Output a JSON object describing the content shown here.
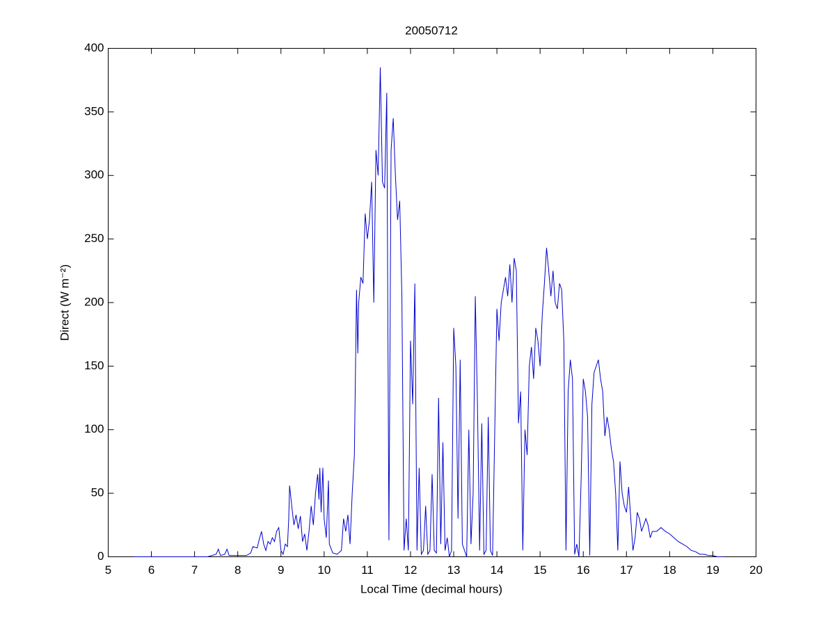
{
  "chart_data": {
    "type": "line",
    "title": "20050712",
    "xlabel": "Local Time (decimal hours)",
    "ylabel": "Direct (W m⁻²)",
    "xlim": [
      5,
      20
    ],
    "ylim": [
      0,
      400
    ],
    "xticks": [
      5,
      6,
      7,
      8,
      9,
      10,
      11,
      12,
      13,
      14,
      15,
      16,
      17,
      18,
      19,
      20
    ],
    "yticks": [
      0,
      50,
      100,
      150,
      200,
      250,
      300,
      350,
      400
    ],
    "series": [
      {
        "color": "#0000cc",
        "x": [
          5.6,
          7.0,
          7.3,
          7.5,
          7.55,
          7.6,
          7.7,
          7.75,
          7.8,
          8.0,
          8.2,
          8.3,
          8.35,
          8.45,
          8.5,
          8.55,
          8.6,
          8.65,
          8.7,
          8.75,
          8.8,
          8.85,
          8.9,
          8.95,
          9.0,
          9.05,
          9.1,
          9.15,
          9.18,
          9.2,
          9.25,
          9.3,
          9.35,
          9.4,
          9.45,
          9.5,
          9.55,
          9.6,
          9.65,
          9.7,
          9.75,
          9.8,
          9.85,
          9.88,
          9.9,
          9.93,
          9.97,
          10.0,
          10.05,
          10.1,
          10.12,
          10.2,
          10.3,
          10.4,
          10.45,
          10.5,
          10.55,
          10.6,
          10.65,
          10.7,
          10.75,
          10.78,
          10.8,
          10.85,
          10.9,
          10.95,
          11.0,
          11.05,
          11.1,
          11.15,
          11.2,
          11.25,
          11.3,
          11.35,
          11.4,
          11.45,
          11.5,
          11.55,
          11.6,
          11.65,
          11.7,
          11.75,
          11.8,
          11.85,
          11.9,
          11.95,
          12.0,
          12.05,
          12.1,
          12.15,
          12.2,
          12.25,
          12.3,
          12.35,
          12.4,
          12.45,
          12.5,
          12.55,
          12.6,
          12.65,
          12.7,
          12.75,
          12.8,
          12.85,
          12.9,
          12.95,
          13.0,
          13.05,
          13.1,
          13.15,
          13.2,
          13.25,
          13.3,
          13.35,
          13.4,
          13.45,
          13.5,
          13.55,
          13.6,
          13.65,
          13.7,
          13.75,
          13.8,
          13.85,
          13.9,
          14.0,
          14.05,
          14.1,
          14.15,
          14.2,
          14.25,
          14.3,
          14.35,
          14.4,
          14.45,
          14.5,
          14.55,
          14.6,
          14.65,
          14.7,
          14.75,
          14.8,
          14.85,
          14.9,
          14.95,
          15.0,
          15.05,
          15.1,
          15.15,
          15.2,
          15.25,
          15.3,
          15.35,
          15.4,
          15.45,
          15.5,
          15.55,
          15.6,
          15.65,
          15.7,
          15.75,
          15.8,
          15.85,
          15.9,
          15.95,
          16.0,
          16.05,
          16.1,
          16.15,
          16.2,
          16.25,
          16.3,
          16.35,
          16.4,
          16.45,
          16.5,
          16.55,
          16.6,
          16.65,
          16.7,
          16.75,
          16.8,
          16.85,
          16.9,
          16.95,
          17.0,
          17.05,
          17.1,
          17.15,
          17.2,
          17.25,
          17.3,
          17.35,
          17.4,
          17.45,
          17.5,
          17.55,
          17.6,
          17.7,
          17.8,
          17.9,
          18.0,
          18.1,
          18.2,
          18.3,
          18.4,
          18.5,
          18.6,
          18.7,
          18.8,
          18.9,
          19.0,
          19.1,
          19.25
        ],
        "values": [
          0,
          0,
          0,
          2,
          6,
          1,
          2,
          6,
          1,
          1,
          1,
          3,
          8,
          7,
          14,
          20,
          10,
          5,
          12,
          10,
          15,
          12,
          20,
          23,
          5,
          2,
          10,
          8,
          30,
          56,
          40,
          25,
          33,
          22,
          32,
          12,
          18,
          5,
          20,
          40,
          25,
          50,
          65,
          45,
          70,
          35,
          70,
          30,
          15,
          60,
          10,
          3,
          2,
          5,
          30,
          20,
          33,
          10,
          50,
          80,
          210,
          160,
          200,
          220,
          215,
          270,
          250,
          265,
          295,
          200,
          320,
          300,
          385,
          295,
          290,
          365,
          13,
          320,
          345,
          300,
          265,
          280,
          205,
          5,
          30,
          5,
          170,
          120,
          215,
          5,
          70,
          2,
          5,
          40,
          2,
          5,
          65,
          5,
          3,
          125,
          10,
          90,
          5,
          15,
          0,
          5,
          180,
          150,
          30,
          155,
          10,
          5,
          0,
          100,
          10,
          50,
          205,
          120,
          5,
          105,
          2,
          5,
          110,
          5,
          1,
          195,
          170,
          200,
          210,
          220,
          205,
          230,
          200,
          235,
          225,
          105,
          130,
          5,
          100,
          80,
          150,
          165,
          140,
          180,
          170,
          150,
          190,
          215,
          243,
          225,
          205,
          225,
          200,
          195,
          215,
          210,
          170,
          5,
          130,
          155,
          140,
          2,
          10,
          0,
          60,
          140,
          130,
          110,
          1,
          120,
          145,
          150,
          155,
          140,
          130,
          95,
          110,
          100,
          85,
          75,
          50,
          5,
          75,
          50,
          40,
          35,
          55,
          30,
          5,
          15,
          35,
          30,
          20,
          25,
          30,
          25,
          15,
          20,
          20,
          23,
          20,
          18,
          15,
          12,
          10,
          8,
          5,
          4,
          2,
          2,
          1,
          1,
          0,
          0
        ]
      }
    ]
  }
}
